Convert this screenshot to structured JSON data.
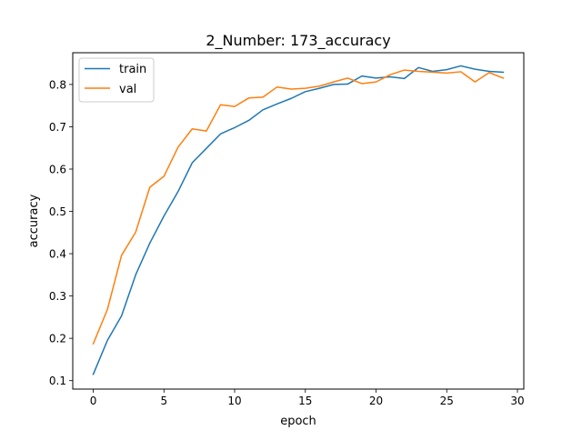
{
  "chart_data": {
    "type": "line",
    "title": "2_Number: 173_accuracy",
    "xlabel": "epoch",
    "ylabel": "accuracy",
    "xlim": [
      -1.45,
      30.45
    ],
    "ylim": [
      0.08,
      0.875
    ],
    "xticks": [
      0,
      5,
      10,
      15,
      20,
      25,
      30
    ],
    "yticks": [
      0.1,
      0.2,
      0.3,
      0.4,
      0.5,
      0.6,
      0.7,
      0.8
    ],
    "grid": false,
    "legend_position": "top-left",
    "x": [
      0,
      1,
      2,
      3,
      4,
      5,
      6,
      7,
      8,
      9,
      10,
      11,
      12,
      13,
      14,
      15,
      16,
      17,
      18,
      19,
      20,
      21,
      22,
      23,
      24,
      25,
      26,
      27,
      28,
      29
    ],
    "series": [
      {
        "name": "train",
        "color": "#1f77b4",
        "values": [
          0.115,
          0.195,
          0.253,
          0.35,
          0.425,
          0.489,
          0.547,
          0.615,
          0.649,
          0.683,
          0.698,
          0.715,
          0.74,
          0.754,
          0.767,
          0.783,
          0.791,
          0.8,
          0.801,
          0.82,
          0.815,
          0.818,
          0.814,
          0.84,
          0.831,
          0.835,
          0.844,
          0.836,
          0.831,
          0.829
        ]
      },
      {
        "name": "val",
        "color": "#ff7f0e",
        "values": [
          0.187,
          0.268,
          0.396,
          0.451,
          0.557,
          0.583,
          0.652,
          0.695,
          0.69,
          0.752,
          0.748,
          0.768,
          0.77,
          0.794,
          0.789,
          0.791,
          0.796,
          0.806,
          0.815,
          0.802,
          0.806,
          0.823,
          0.834,
          0.831,
          0.829,
          0.827,
          0.83,
          0.806,
          0.828,
          0.815
        ]
      }
    ]
  }
}
